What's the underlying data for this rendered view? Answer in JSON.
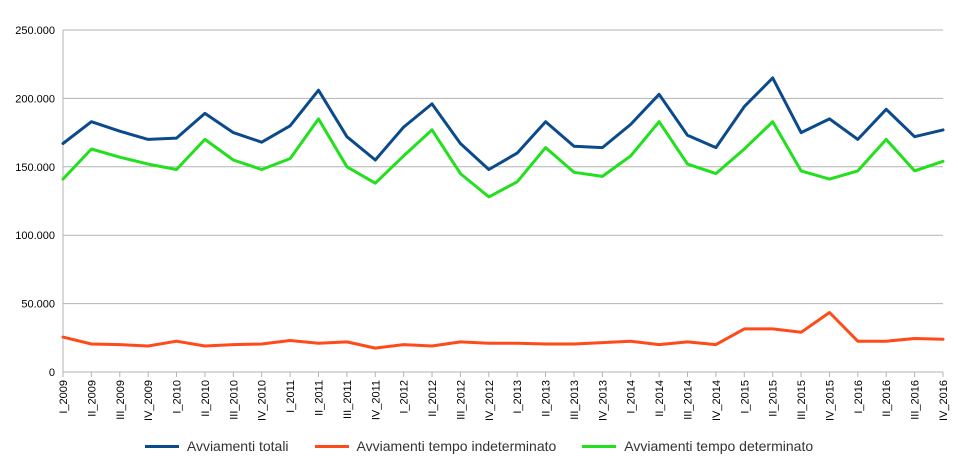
{
  "chart_data": {
    "type": "line",
    "title": "",
    "xlabel": "",
    "ylabel": "",
    "ylim": [
      0,
      250000
    ],
    "yticks": [
      "0",
      "50.000",
      "100.000",
      "150.000",
      "200.000",
      "250.000"
    ],
    "grid": true,
    "legend_position": "bottom",
    "categories": [
      "I_2009",
      "II_2009",
      "III_2009",
      "IV_2009",
      "I_2010",
      "II_2010",
      "III_2010",
      "IV_2010",
      "I_2011",
      "II_2011",
      "III_2011",
      "IV_2011",
      "I_2012",
      "II_2012",
      "III_2012",
      "IV_2012",
      "I_2013",
      "II_2013",
      "III_2013",
      "IV_2013",
      "I_2014",
      "II_2014",
      "III_2014",
      "IV_2014",
      "I_2015",
      "II_2015",
      "III_2015",
      "IV_2015",
      "I_2016",
      "II_2016",
      "III_2016",
      "IV_2016"
    ],
    "series": [
      {
        "name": "Avviamenti totali",
        "color": "#0b4a8b",
        "values": [
          167000,
          183000,
          176000,
          170000,
          171000,
          189000,
          175000,
          168000,
          180000,
          206000,
          172000,
          155000,
          179000,
          196000,
          167000,
          148000,
          160000,
          183000,
          165000,
          164000,
          181000,
          203000,
          173000,
          164000,
          194000,
          215000,
          175000,
          185000,
          170000,
          192000,
          172000,
          177000
        ]
      },
      {
        "name": "Avviamenti tempo indeterminato",
        "color": "#ff4a1a",
        "values": [
          25500,
          20500,
          20000,
          19000,
          22500,
          19000,
          20000,
          20500,
          23000,
          21000,
          22000,
          17500,
          20000,
          19000,
          22000,
          21000,
          21000,
          20500,
          20500,
          21500,
          22500,
          20000,
          22000,
          20000,
          31500,
          31500,
          29000,
          43500,
          22500,
          22500,
          24500,
          24000
        ]
      },
      {
        "name": "Avviamenti tempo determinato",
        "color": "#22e01e",
        "values": [
          141000,
          163000,
          157000,
          152000,
          148000,
          170000,
          155000,
          148000,
          156000,
          185000,
          150000,
          138000,
          158000,
          177000,
          145000,
          128000,
          139000,
          164000,
          146000,
          143000,
          158000,
          183000,
          152000,
          145000,
          163000,
          183000,
          147000,
          141000,
          147000,
          170000,
          147000,
          154000
        ]
      }
    ]
  }
}
